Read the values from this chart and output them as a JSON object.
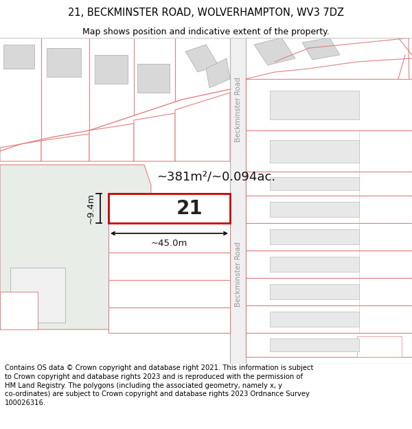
{
  "title_line1": "21, BECKMINSTER ROAD, WOLVERHAMPTON, WV3 7DZ",
  "title_line2": "Map shows position and indicative extent of the property.",
  "footer_text": "Contains OS data © Crown copyright and database right 2021. This information is subject to Crown copyright and database rights 2023 and is reproduced with the permission of HM Land Registry. The polygons (including the associated geometry, namely x, y co-ordinates) are subject to Crown copyright and database rights 2023 Ordnance Survey 100026316.",
  "area_label": "~381m²/~0.094ac.",
  "plot_number": "21",
  "dim_width": "~45.0m",
  "dim_height": "~9.4m",
  "bg_color": "#ffffff",
  "plot21_fill": "#ffffff",
  "plot21_edge": "#cc0000",
  "road_line_color": "#e08080",
  "road_label": "Beckminster Road",
  "green_fill": "#e8ede8",
  "grey_fill": "#d8d8d8",
  "title_fontsize": 10.5,
  "subtitle_fontsize": 9,
  "footer_fontsize": 7.2
}
